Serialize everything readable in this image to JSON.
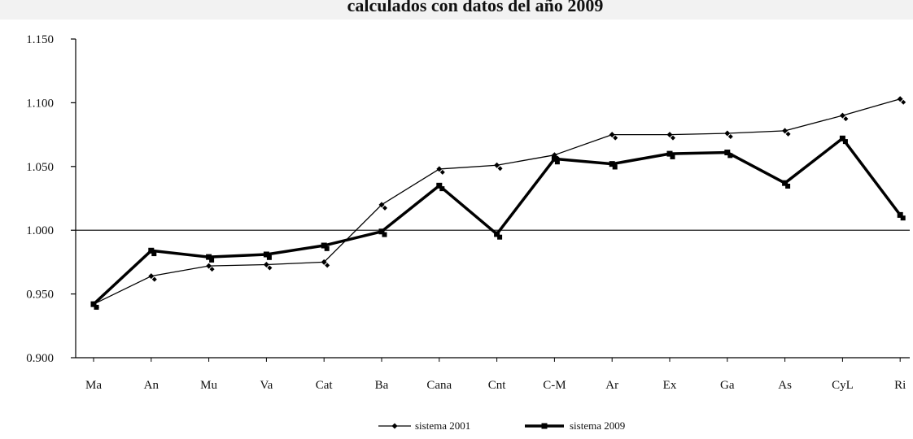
{
  "chart_data": {
    "type": "line",
    "title": "calculados con datos del año 2009",
    "categories": [
      "Ma",
      "An",
      "Mu",
      "Va",
      "Cat",
      "Ba",
      "Cana",
      "Cnt",
      "C-M",
      "Ar",
      "Ex",
      "Ga",
      "As",
      "CyL",
      "Ri"
    ],
    "yticks": [
      "1.150",
      "1.100",
      "1.050",
      "1.000",
      "0.950",
      "0.900"
    ],
    "ylim": [
      0.9,
      1.15
    ],
    "reference_line": 1.0,
    "legend_position": "bottom-center",
    "series": [
      {
        "name": "sistema 2001",
        "values": [
          0.942,
          0.964,
          0.972,
          0.973,
          0.975,
          1.02,
          1.048,
          1.051,
          1.059,
          1.075,
          1.075,
          1.076,
          1.078,
          1.09,
          1.103
        ],
        "color": "#000000",
        "marker": "diamond"
      },
      {
        "name": "sistema 2009",
        "values": [
          0.942,
          0.984,
          0.979,
          0.981,
          0.988,
          0.999,
          1.035,
          0.997,
          1.056,
          1.052,
          1.06,
          1.061,
          1.037,
          1.072,
          1.012
        ],
        "color": "#000000",
        "marker": "square"
      }
    ]
  }
}
